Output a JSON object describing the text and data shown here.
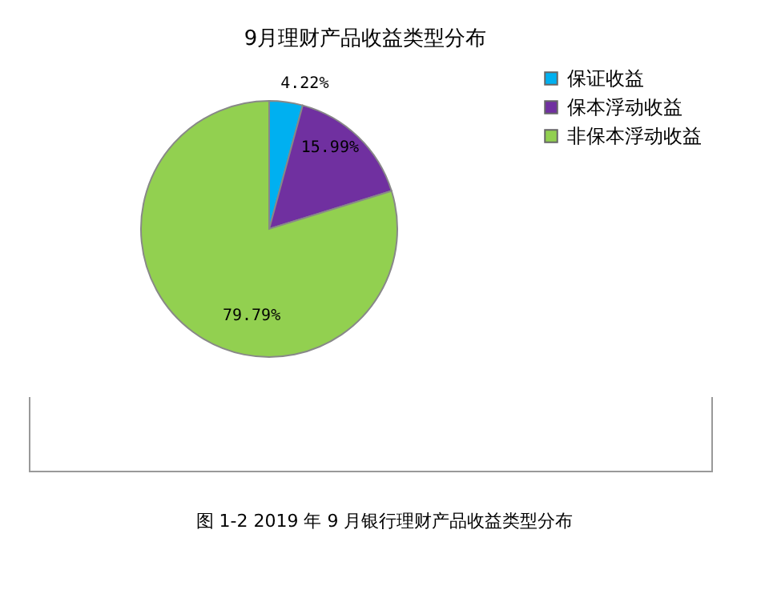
{
  "chart_data": {
    "type": "pie",
    "title": "9月理财产品收益类型分布",
    "categories": [
      "保证收益",
      "保本浮动收益",
      "非保本浮动收益"
    ],
    "values": [
      4.22,
      15.99,
      79.79
    ],
    "colors": [
      "#00b0f0",
      "#7030a0",
      "#92d050"
    ],
    "value_labels": [
      "4.22%",
      "15.99%",
      "79.79%"
    ],
    "legend": "right",
    "annotations": [
      "图 1-2 2019 年 9 月银行理财产品收益类型分布"
    ]
  }
}
